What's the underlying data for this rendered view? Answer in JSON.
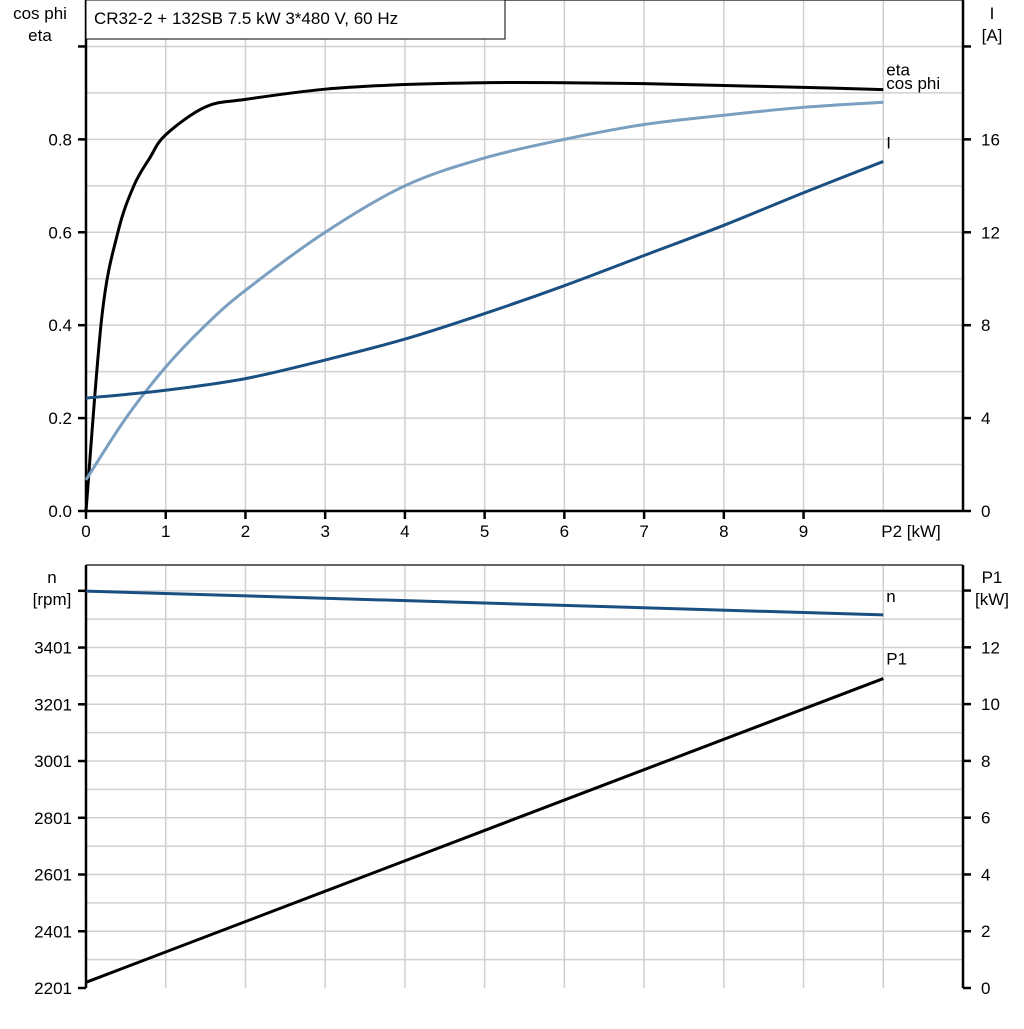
{
  "title": "CR32-2 + 132SB   7.5 kW   3*480 V, 60 Hz",
  "colors": {
    "eta": "#000000",
    "cos_phi": "#7a9fc0",
    "I": "#1a4f82",
    "n": "#1a4f82",
    "P1": "#000000",
    "grid": "#d0d0d0"
  },
  "chart_data": [
    {
      "type": "line",
      "xlabel": "P2 [kW]",
      "ylabel_left": [
        "cos phi",
        "eta"
      ],
      "ylabel_right": [
        "I",
        "[A]"
      ],
      "xlim": [
        0,
        11
      ],
      "ylim_left": [
        0,
        1.1
      ],
      "ylim_right": [
        0,
        22
      ],
      "grid": true,
      "x_ticks": [
        "0",
        "1",
        "2",
        "3",
        "4",
        "5",
        "6",
        "7",
        "8",
        "9"
      ],
      "y_ticks_left": [
        "0.0",
        "0.2",
        "0.4",
        "0.6",
        "0.8"
      ],
      "y_ticks_right": [
        "0",
        "4",
        "8",
        "12",
        "16"
      ],
      "series": [
        {
          "name": "eta",
          "axis": "left",
          "x": [
            0,
            0.2,
            0.4,
            0.6,
            0.8,
            1,
            1.5,
            2,
            3,
            4,
            5,
            6,
            7,
            8,
            9,
            10
          ],
          "y": [
            0,
            0.42,
            0.6,
            0.7,
            0.76,
            0.81,
            0.87,
            0.886,
            0.908,
            0.918,
            0.922,
            0.922,
            0.92,
            0.916,
            0.912,
            0.907
          ]
        },
        {
          "name": "cos phi",
          "axis": "left",
          "x": [
            0,
            0.5,
            1,
            1.5,
            2,
            3,
            4,
            5,
            6,
            7,
            8,
            9,
            10
          ],
          "y": [
            0.067,
            0.2,
            0.31,
            0.4,
            0.475,
            0.6,
            0.7,
            0.76,
            0.8,
            0.832,
            0.852,
            0.869,
            0.88
          ]
        },
        {
          "name": "I",
          "axis": "right",
          "x": [
            0,
            1,
            2,
            3,
            4,
            5,
            6,
            7,
            8,
            9,
            10
          ],
          "y": [
            4.86,
            5.2,
            5.7,
            6.5,
            7.4,
            8.5,
            9.7,
            11.0,
            12.3,
            13.7,
            15.05
          ]
        }
      ]
    },
    {
      "type": "line",
      "ylabel_left": [
        "n",
        "[rpm]"
      ],
      "ylabel_right": [
        "P1",
        "[kW]"
      ],
      "xlim": [
        0,
        11
      ],
      "ylim_left": [
        2201,
        3692
      ],
      "ylim_right": [
        0,
        14.9
      ],
      "grid": true,
      "y_ticks_left": [
        "2201",
        "2401",
        "2601",
        "2801",
        "3001",
        "3201",
        "3401"
      ],
      "y_ticks_right": [
        "0",
        "2",
        "4",
        "6",
        "8",
        "10",
        "12"
      ],
      "series": [
        {
          "name": "n",
          "axis": "left",
          "x": [
            0,
            10
          ],
          "y": [
            3600,
            3516
          ]
        },
        {
          "name": "P1",
          "axis": "right",
          "x": [
            0,
            10
          ],
          "y": [
            0.2,
            10.9
          ]
        }
      ]
    }
  ]
}
